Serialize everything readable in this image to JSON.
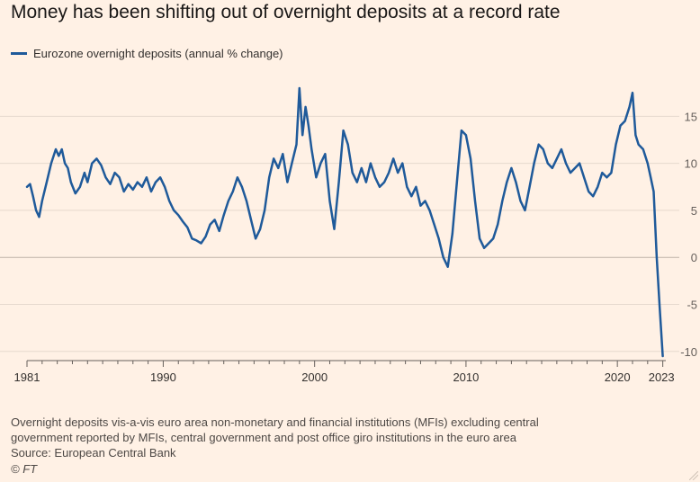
{
  "title": "Money has been shifting out of overnight deposits at a record rate",
  "colors": {
    "line": "#1f5a9a",
    "grid": "#e6d9ce",
    "background": "#fff1e5",
    "zero_line": "#bfb3a8",
    "axis": "#66605c"
  },
  "chart_data": {
    "type": "line",
    "title": "Money has been shifting out of overnight deposits at a record rate",
    "xlabel": "",
    "ylabel": "",
    "xlim": [
      1981,
      2023.2
    ],
    "ylim": [
      -10.5,
      18
    ],
    "y_axis_position": "right",
    "grid": true,
    "legend_placement": "top-left",
    "x_ticks": [
      "1981",
      "1990",
      "2000",
      "2010",
      "2020",
      "2023"
    ],
    "y_ticks": [
      "15",
      "10",
      "5",
      "0",
      "-5",
      "-10"
    ],
    "series": [
      {
        "name": "Eurozone overnight deposits (annual % change)",
        "x": [
          1981.0,
          1981.2,
          1981.4,
          1981.6,
          1981.8,
          1982.0,
          1982.3,
          1982.6,
          1982.9,
          1983.1,
          1983.3,
          1983.5,
          1983.7,
          1983.9,
          1984.2,
          1984.5,
          1984.8,
          1985.0,
          1985.3,
          1985.6,
          1985.9,
          1986.2,
          1986.5,
          1986.8,
          1987.1,
          1987.4,
          1987.7,
          1988.0,
          1988.3,
          1988.6,
          1988.9,
          1989.2,
          1989.5,
          1989.8,
          1990.1,
          1990.4,
          1990.7,
          1991.0,
          1991.3,
          1991.6,
          1991.9,
          1992.2,
          1992.5,
          1992.8,
          1993.1,
          1993.4,
          1993.7,
          1994.0,
          1994.3,
          1994.6,
          1994.9,
          1995.2,
          1995.5,
          1995.8,
          1996.1,
          1996.4,
          1996.7,
          1997.0,
          1997.3,
          1997.6,
          1997.9,
          1998.2,
          1998.5,
          1998.8,
          1999.0,
          1999.2,
          1999.4,
          1999.6,
          1999.8,
          2000.1,
          2000.4,
          2000.7,
          2001.0,
          2001.3,
          2001.6,
          2001.9,
          2002.2,
          2002.5,
          2002.8,
          2003.1,
          2003.4,
          2003.7,
          2004.0,
          2004.3,
          2004.6,
          2004.9,
          2005.2,
          2005.5,
          2005.8,
          2006.1,
          2006.4,
          2006.7,
          2007.0,
          2007.3,
          2007.6,
          2007.9,
          2008.2,
          2008.5,
          2008.8,
          2009.1,
          2009.4,
          2009.7,
          2010.0,
          2010.3,
          2010.6,
          2010.9,
          2011.2,
          2011.5,
          2011.8,
          2012.1,
          2012.4,
          2012.7,
          2013.0,
          2013.3,
          2013.6,
          2013.9,
          2014.2,
          2014.5,
          2014.8,
          2015.1,
          2015.4,
          2015.7,
          2016.0,
          2016.3,
          2016.6,
          2016.9,
          2017.2,
          2017.5,
          2017.8,
          2018.1,
          2018.4,
          2018.7,
          2019.0,
          2019.3,
          2019.6,
          2019.9,
          2020.2,
          2020.5,
          2020.8,
          2021.0,
          2021.2,
          2021.4,
          2021.7,
          2022.0,
          2022.2,
          2022.4,
          2022.6,
          2022.8,
          2023.0
        ],
        "values": [
          7.5,
          7.8,
          6.5,
          5.0,
          4.3,
          6.0,
          8.0,
          10.0,
          11.5,
          10.8,
          11.5,
          10.0,
          9.5,
          8.0,
          6.8,
          7.5,
          9.0,
          8.0,
          10.0,
          10.5,
          9.8,
          8.5,
          7.8,
          9.0,
          8.5,
          7.0,
          7.8,
          7.2,
          8.0,
          7.5,
          8.5,
          7.0,
          8.0,
          8.5,
          7.5,
          6.0,
          5.0,
          4.5,
          3.8,
          3.2,
          2.0,
          1.8,
          1.5,
          2.2,
          3.5,
          4.0,
          2.8,
          4.5,
          6.0,
          7.0,
          8.5,
          7.5,
          6.0,
          4.0,
          2.0,
          3.0,
          5.0,
          8.5,
          10.5,
          9.5,
          11.0,
          8.0,
          10.0,
          12.0,
          18.0,
          13.0,
          16.0,
          14.0,
          11.5,
          8.5,
          10.0,
          11.0,
          6.0,
          3.0,
          8.0,
          13.5,
          12.0,
          9.0,
          8.0,
          9.5,
          8.0,
          10.0,
          8.5,
          7.5,
          8.0,
          9.0,
          10.5,
          9.0,
          10.0,
          7.5,
          6.5,
          7.5,
          5.5,
          6.0,
          5.0,
          3.5,
          2.0,
          0.0,
          -1.0,
          2.5,
          8.0,
          13.5,
          13.0,
          10.5,
          6.0,
          2.0,
          1.0,
          1.5,
          2.0,
          3.5,
          6.0,
          8.0,
          9.5,
          8.0,
          6.0,
          5.0,
          7.5,
          10.0,
          12.0,
          11.5,
          10.0,
          9.5,
          10.5,
          11.5,
          10.0,
          9.0,
          9.5,
          10.0,
          8.5,
          7.0,
          6.5,
          7.5,
          9.0,
          8.5,
          9.0,
          12.0,
          14.0,
          14.5,
          16.0,
          17.5,
          13.0,
          12.0,
          11.5,
          10.0,
          8.5,
          7.0,
          0.0,
          -5.5,
          -10.5
        ]
      }
    ]
  },
  "legend": {
    "label": "Eurozone overnight deposits (annual % change)"
  },
  "footnote": {
    "line1": "Overnight deposits vis-a-vis euro area non-monetary and financial institutions (MFIs) excluding central",
    "line2": "government reported by MFIs, central government and post office giro institutions in the euro area",
    "source": "Source: European Central Bank"
  },
  "credit": "© FT"
}
